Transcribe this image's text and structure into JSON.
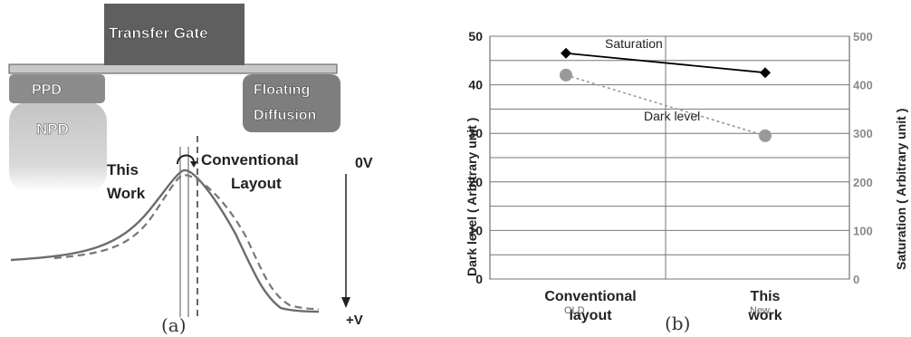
{
  "panel_a": {
    "gate_label": "Transfer Gate",
    "ppd_label": "PPD",
    "npd_label": "NPD",
    "fd_label_line1": "Floating",
    "fd_label_line2": "Diffusion",
    "this_work_line1": "This",
    "this_work_line2": "Work",
    "conventional_line1": "Conventional",
    "conventional_line2": "Layout",
    "zero_v": "0V",
    "plus_v": "+V",
    "caption": "(a)"
  },
  "panel_b": {
    "caption": "(b)",
    "old_tag": "OLD",
    "new_tag": "New"
  },
  "colors": {
    "gate": "#616161",
    "bar": "#bfbfbf",
    "well": "#8a8a8a",
    "npd": "#c8c8c8",
    "saturation_line": "#000000",
    "dark_line": "#9a9a9a"
  },
  "chart_data": {
    "type": "line",
    "categories": [
      "Conventional layout",
      "This work"
    ],
    "ylabel": "Dark level ( Arbitrary unit )",
    "y2label": "Saturation ( Arbitrary unit )",
    "ylim": [
      0,
      50
    ],
    "y2lim": [
      0,
      500
    ],
    "yticks": [
      0,
      10,
      20,
      30,
      40,
      50
    ],
    "y2ticks": [
      0,
      100,
      200,
      300,
      400,
      500
    ],
    "grid": true,
    "series": [
      {
        "name": "Saturation",
        "axis": "right",
        "marker": "diamond",
        "values": [
          465,
          425
        ]
      },
      {
        "name": "Dark level",
        "axis": "left",
        "marker": "circle",
        "dashed": true,
        "values": [
          42,
          29.5
        ]
      }
    ]
  }
}
